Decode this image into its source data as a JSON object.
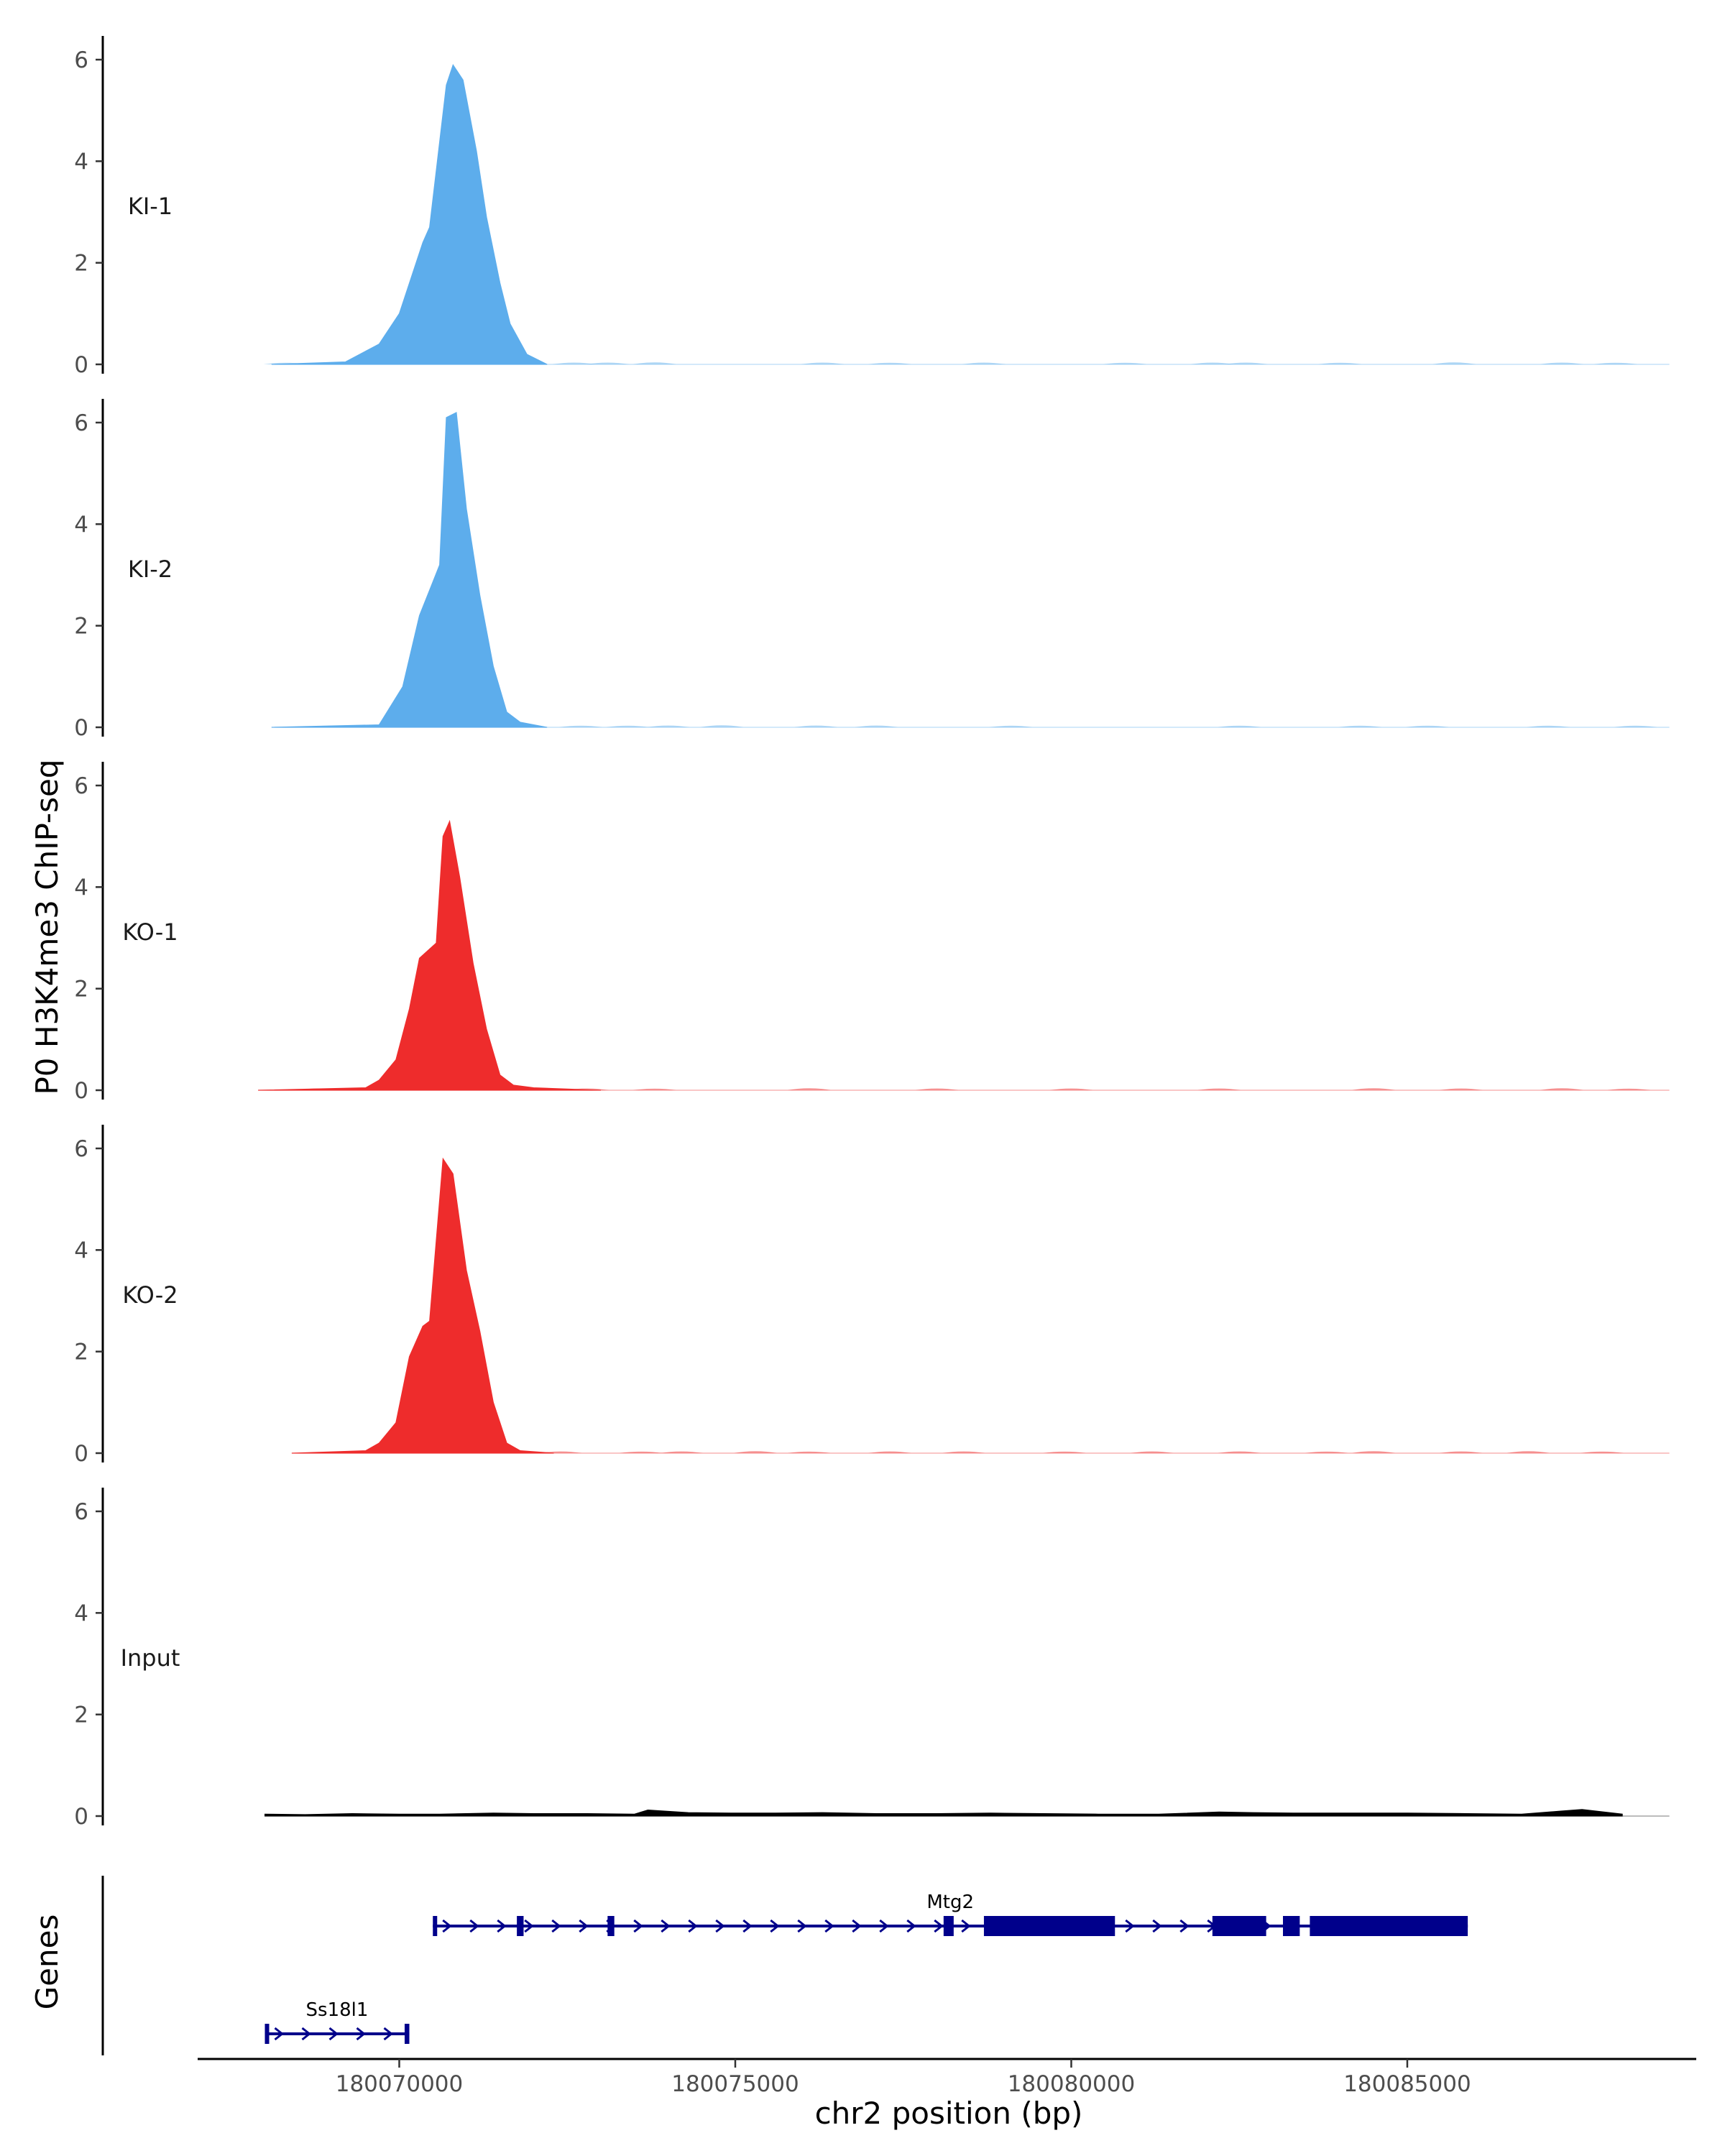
{
  "chart_data": {
    "type": "area",
    "ylabel": "P0 H3K4me3 ChIP-seq",
    "xlabel": "chr2 position (bp)",
    "gene_track_label": "Genes",
    "xlim": [
      180067000,
      180089300
    ],
    "ylim": [
      0,
      6.5
    ],
    "y_ticks": [
      0,
      2,
      4,
      6
    ],
    "x_ticks": [
      {
        "value": 180070000,
        "label": "180070000"
      },
      {
        "value": 180075000,
        "label": "180075000"
      },
      {
        "value": 180080000,
        "label": "180080000"
      },
      {
        "value": 180085000,
        "label": "180085000"
      }
    ],
    "grid": false,
    "series": [
      {
        "name": "KI-1",
        "color": "#5DADEC",
        "x": [
          180068100,
          180069200,
          180069700,
          180070000,
          180070350,
          180070450,
          180070700,
          180070800,
          180070950,
          180071150,
          180071300,
          180071500,
          180071650,
          180071900,
          180072200
        ],
        "y": [
          0,
          0.05,
          0.4,
          1.0,
          2.4,
          2.7,
          5.5,
          5.9,
          5.6,
          4.2,
          2.9,
          1.6,
          0.8,
          0.2,
          0
        ],
        "noise": [
          [
            180068300,
            0.02
          ],
          [
            180069000,
            0.02
          ],
          [
            180072600,
            0.03
          ],
          [
            180073100,
            0.03
          ],
          [
            180073800,
            0.04
          ],
          [
            180076300,
            0.03
          ],
          [
            180077300,
            0.02
          ],
          [
            180078700,
            0.03
          ],
          [
            180080800,
            0.02
          ],
          [
            180082100,
            0.03
          ],
          [
            180082600,
            0.03
          ],
          [
            180084000,
            0.02
          ],
          [
            180085700,
            0.04
          ],
          [
            180087300,
            0.03
          ],
          [
            180088100,
            0.02
          ]
        ]
      },
      {
        "name": "KI-2",
        "color": "#5DADEC",
        "x": [
          180068100,
          180069700,
          180070050,
          180070300,
          180070450,
          180070600,
          180070700,
          180070850,
          180071000,
          180071200,
          180071400,
          180071600,
          180071800,
          180072200
        ],
        "y": [
          0,
          0.05,
          0.8,
          2.2,
          2.7,
          3.2,
          6.1,
          6.2,
          4.3,
          2.6,
          1.2,
          0.3,
          0.1,
          0
        ],
        "noise": [
          [
            180072700,
            0.02
          ],
          [
            180073400,
            0.02
          ],
          [
            180074000,
            0.03
          ],
          [
            180074800,
            0.04
          ],
          [
            180076200,
            0.03
          ],
          [
            180077100,
            0.03
          ],
          [
            180079100,
            0.02
          ],
          [
            180082500,
            0.02
          ],
          [
            180084300,
            0.02
          ],
          [
            180085300,
            0.02
          ],
          [
            180087100,
            0.02
          ],
          [
            180088400,
            0.02
          ]
        ]
      },
      {
        "name": "KO-1",
        "color": "#EE2C2C",
        "x": [
          180067900,
          180069500,
          180069700,
          180069950,
          180070150,
          180070300,
          180070550,
          180070650,
          180070750,
          180070900,
          180071100,
          180071300,
          180071500,
          180071700,
          180072000,
          180073000
        ],
        "y": [
          0,
          0.05,
          0.2,
          0.6,
          1.6,
          2.6,
          2.9,
          5.0,
          5.3,
          4.2,
          2.5,
          1.2,
          0.3,
          0.1,
          0.05,
          0
        ],
        "noise": [
          [
            180068800,
            0.03
          ],
          [
            180071900,
            0.02
          ],
          [
            180072800,
            0.03
          ],
          [
            180073800,
            0.02
          ],
          [
            180076100,
            0.04
          ],
          [
            180078000,
            0.03
          ],
          [
            180080000,
            0.03
          ],
          [
            180082200,
            0.03
          ],
          [
            180084500,
            0.04
          ],
          [
            180085800,
            0.03
          ],
          [
            180087300,
            0.04
          ],
          [
            180088300,
            0.02
          ]
        ]
      },
      {
        "name": "KO-2",
        "color": "#EE2C2C",
        "x": [
          180068400,
          180069500,
          180069700,
          180069950,
          180070150,
          180070350,
          180070450,
          180070650,
          180070800,
          180071000,
          180071200,
          180071400,
          180071600,
          180071800,
          180072300
        ],
        "y": [
          0,
          0.05,
          0.2,
          0.6,
          1.9,
          2.5,
          2.6,
          5.8,
          5.5,
          3.6,
          2.4,
          1.0,
          0.2,
          0.05,
          0
        ],
        "noise": [
          [
            180072400,
            0.03
          ],
          [
            180073600,
            0.02
          ],
          [
            180074200,
            0.03
          ],
          [
            180075300,
            0.04
          ],
          [
            180076100,
            0.02
          ],
          [
            180077300,
            0.03
          ],
          [
            180078400,
            0.03
          ],
          [
            180079900,
            0.02
          ],
          [
            180081200,
            0.03
          ],
          [
            180082500,
            0.03
          ],
          [
            180083800,
            0.02
          ],
          [
            180084500,
            0.04
          ],
          [
            180085800,
            0.03
          ],
          [
            180086800,
            0.04
          ],
          [
            180087900,
            0.02
          ]
        ]
      },
      {
        "name": "Input",
        "color": "#000000",
        "x": [
          180068000,
          180068600,
          180069300,
          180070000,
          180070600,
          180071400,
          180072000,
          180072800,
          180073500,
          180073700,
          180074300,
          180075000,
          180075600,
          180076300,
          180077100,
          180078000,
          180078800,
          180079600,
          180080400,
          180081300,
          180082200,
          180082700,
          180083300,
          180084100,
          180085000,
          180085900,
          180086700,
          180087300,
          180087600,
          180088200
        ],
        "y": [
          0.04,
          0.03,
          0.05,
          0.04,
          0.04,
          0.06,
          0.05,
          0.05,
          0.04,
          0.12,
          0.07,
          0.06,
          0.06,
          0.07,
          0.05,
          0.05,
          0.06,
          0.05,
          0.04,
          0.04,
          0.08,
          0.07,
          0.06,
          0.06,
          0.06,
          0.05,
          0.04,
          0.1,
          0.13,
          0.04
        ]
      }
    ],
    "genes": [
      {
        "name": "Mtg2",
        "row": 1,
        "start": 180070500,
        "end": 180085900,
        "strand": "+",
        "color": "#00008B",
        "exons": [
          [
            180070500,
            180070560
          ],
          [
            180071750,
            180071850
          ],
          [
            180073100,
            180073200
          ],
          [
            180078100,
            180078250
          ],
          [
            180078700,
            180080650
          ],
          [
            180082100,
            180082900
          ],
          [
            180083150,
            180083400
          ],
          [
            180083550,
            180085900
          ]
        ]
      },
      {
        "name": "Ss18l1",
        "row": 2,
        "start": 180068000,
        "end": 180070150,
        "strand": "+",
        "color": "#00008B",
        "exons": [
          [
            180068000,
            180068050
          ],
          [
            180070080,
            180070150
          ]
        ]
      }
    ]
  }
}
